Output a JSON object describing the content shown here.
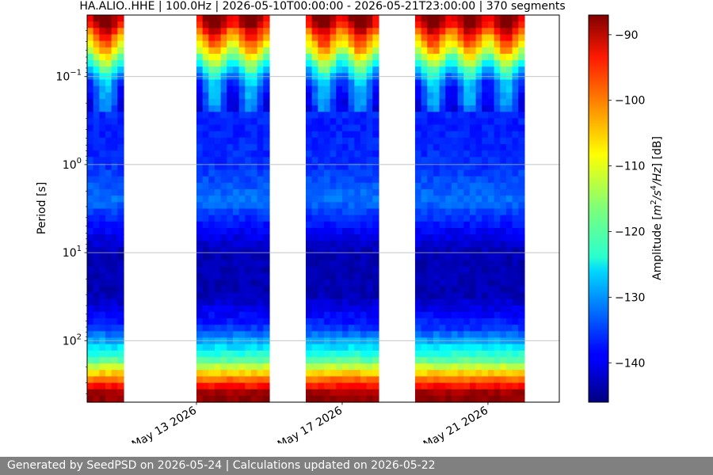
{
  "footer_text": "Generated by SeedPSD on 2026-05-24 | Calculations updated on 2026-05-22",
  "chart_data": {
    "type": "heatmap",
    "title": "HA.ALIO..HHE | 100.0Hz | 2026-05-10T00:00:00 - 2026-05-21T23:00:00 | 370 segments",
    "ylabel": "Period [s]",
    "yscale": "log",
    "yinverted": true,
    "ylim": [
      0.02,
      500
    ],
    "y_ticks": [
      {
        "value": 0.1,
        "base": "10",
        "exp": "−1"
      },
      {
        "value": 1,
        "base": "10",
        "exp": "0"
      },
      {
        "value": 10,
        "base": "10",
        "exp": "1"
      },
      {
        "value": 100,
        "base": "10",
        "exp": "2"
      }
    ],
    "y_grid": true,
    "xlim": [
      "2026-05-10T00:00:00",
      "2026-05-22T23:00:00"
    ],
    "x_ticks": [
      {
        "date": "2026-05-13",
        "label": "May 13 2026"
      },
      {
        "date": "2026-05-17",
        "label": "May 17 2026"
      },
      {
        "date": "2026-05-21",
        "label": "May 21 2026"
      }
    ],
    "data_segments": [
      {
        "start": "2026-05-10T00:00:00",
        "end": "2026-05-11T00:00:00"
      },
      {
        "start": "2026-05-13T00:00:00",
        "end": "2026-05-14T00:00:00"
      },
      {
        "start": "2026-05-14T00:00:00",
        "end": "2026-05-15T00:00:00"
      },
      {
        "start": "2026-05-16T00:00:00",
        "end": "2026-05-17T00:00:00"
      },
      {
        "start": "2026-05-17T00:00:00",
        "end": "2026-05-18T00:00:00"
      },
      {
        "start": "2026-05-19T00:00:00",
        "end": "2026-05-20T00:00:00"
      },
      {
        "start": "2026-05-20T00:00:00",
        "end": "2026-05-21T00:00:00"
      },
      {
        "start": "2026-05-21T00:00:00",
        "end": "2026-05-22T00:00:00"
      }
    ],
    "amplitude_profile_db": [
      {
        "period": 0.02,
        "amp": -88
      },
      {
        "period": 0.025,
        "amp": -90
      },
      {
        "period": 0.032,
        "amp": -98
      },
      {
        "period": 0.05,
        "amp": -108
      },
      {
        "period": 0.08,
        "amp": -122
      },
      {
        "period": 0.12,
        "amp": -132
      },
      {
        "period": 0.3,
        "amp": -137
      },
      {
        "period": 1,
        "amp": -136
      },
      {
        "period": 2.5,
        "amp": -132
      },
      {
        "period": 5,
        "amp": -138
      },
      {
        "period": 10,
        "amp": -143
      },
      {
        "period": 30,
        "amp": -143
      },
      {
        "period": 70,
        "amp": -136
      },
      {
        "period": 110,
        "amp": -127
      },
      {
        "period": 170,
        "amp": -118
      },
      {
        "period": 250,
        "amp": -104
      },
      {
        "period": 320,
        "amp": -96
      },
      {
        "period": 400,
        "amp": -88
      },
      {
        "period": 500,
        "amp": -88
      }
    ],
    "colorbar": {
      "label_prefix": "Amplitude [",
      "label_m": "m",
      "label_sup2": "2",
      "label_s": "/s",
      "label_sup4": "4",
      "label_hz": "/Hz",
      "label_suffix": "] [dB]",
      "colormap": "jet",
      "range": [
        -146,
        -87
      ],
      "ticks": [
        {
          "value": -90,
          "label": "−90"
        },
        {
          "value": -100,
          "label": "−100"
        },
        {
          "value": -110,
          "label": "−110"
        },
        {
          "value": -120,
          "label": "−120"
        },
        {
          "value": -130,
          "label": "−130"
        },
        {
          "value": -140,
          "label": "−140"
        }
      ]
    }
  }
}
